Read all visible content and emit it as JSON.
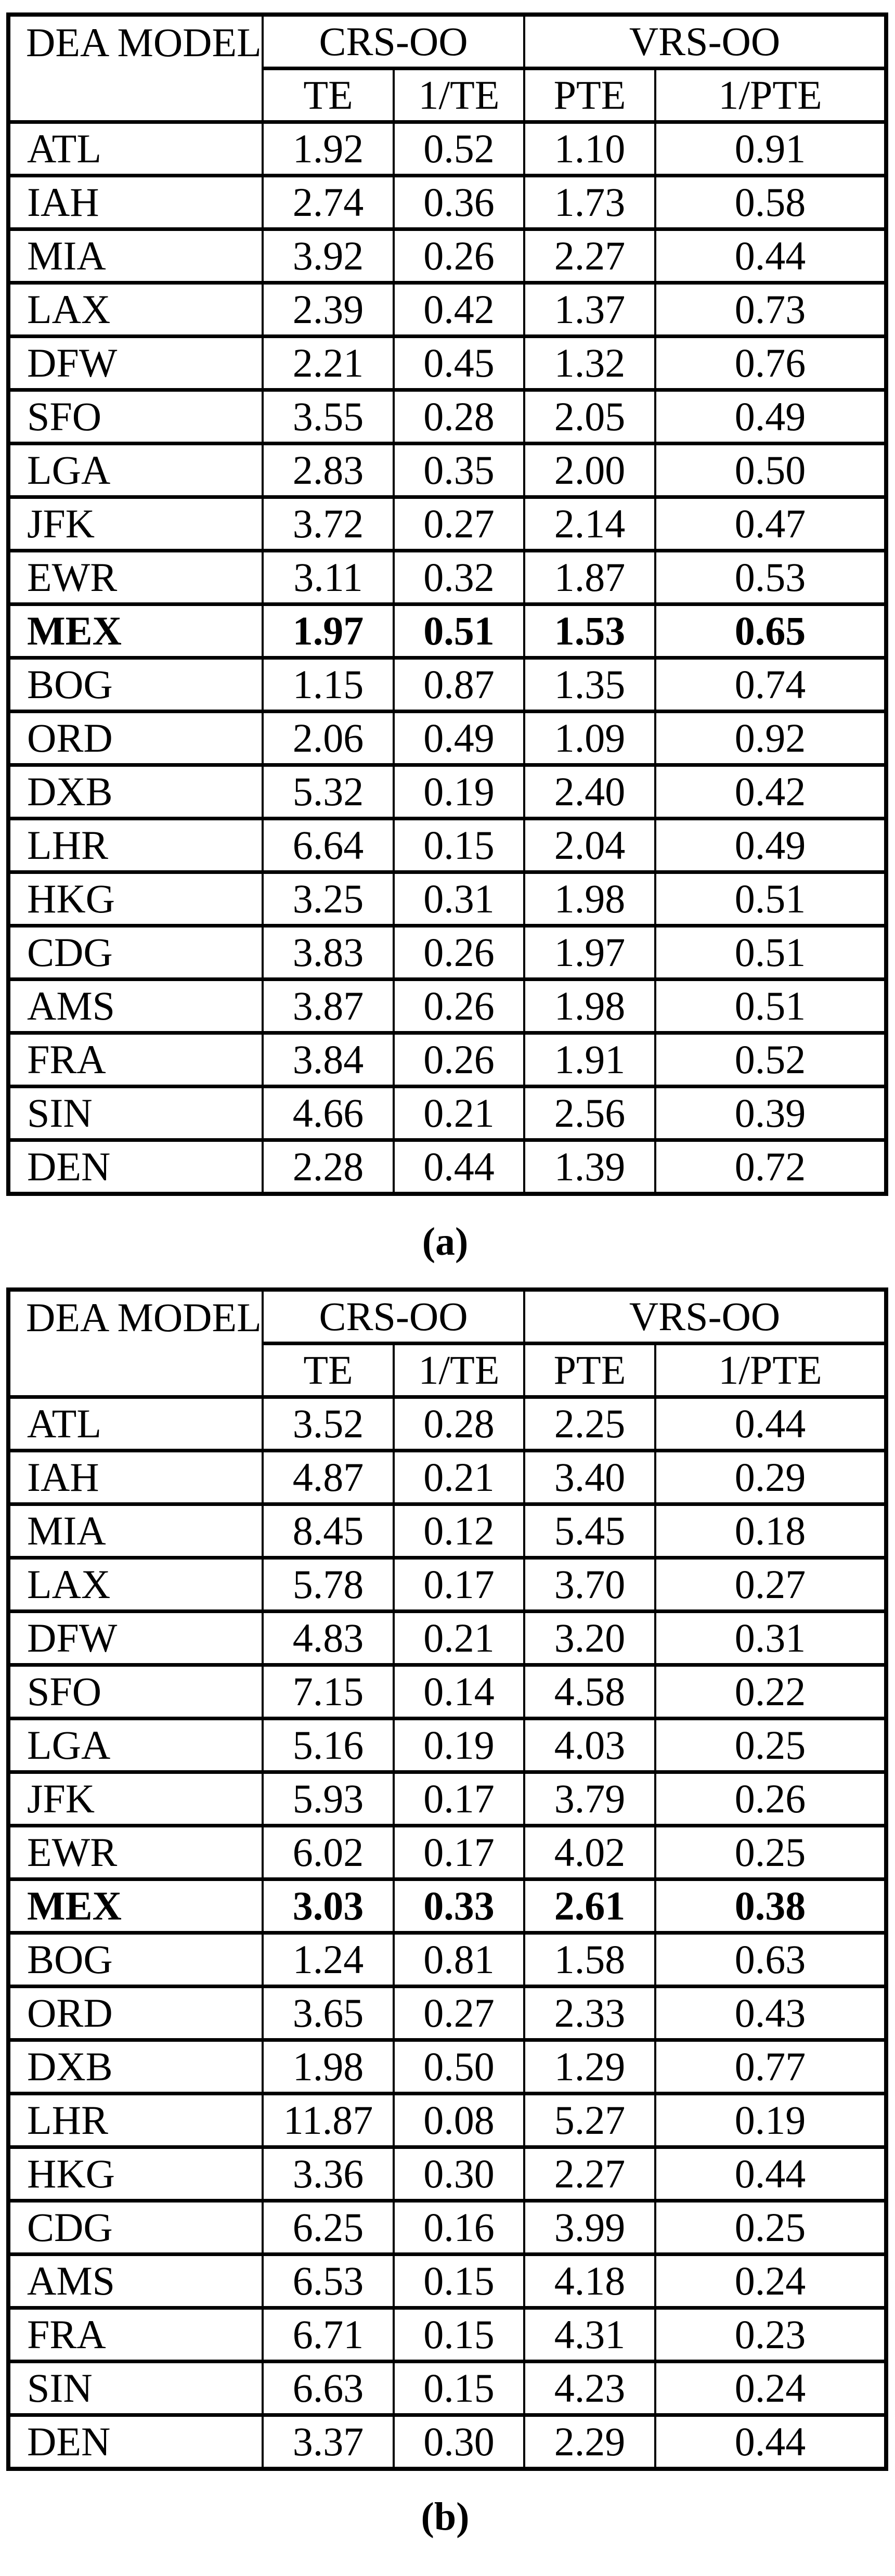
{
  "page": {
    "background_color": "#ffffff",
    "text_color": "#000000"
  },
  "tables": [
    {
      "caption": "(a)",
      "header": {
        "model": "DEA MODEL",
        "groups": [
          "CRS-OO",
          "VRS-OO"
        ],
        "subheaders": [
          "TE",
          "1/TE",
          "PTE",
          "1/PTE"
        ]
      },
      "rows": [
        {
          "code": "ATL",
          "te": "1.92",
          "inv_te": "0.52",
          "pte": "1.10",
          "inv_pte": "0.91",
          "bold": false
        },
        {
          "code": "IAH",
          "te": "2.74",
          "inv_te": "0.36",
          "pte": "1.73",
          "inv_pte": "0.58",
          "bold": false
        },
        {
          "code": "MIA",
          "te": "3.92",
          "inv_te": "0.26",
          "pte": "2.27",
          "inv_pte": "0.44",
          "bold": false
        },
        {
          "code": "LAX",
          "te": "2.39",
          "inv_te": "0.42",
          "pte": "1.37",
          "inv_pte": "0.73",
          "bold": false
        },
        {
          "code": "DFW",
          "te": "2.21",
          "inv_te": "0.45",
          "pte": "1.32",
          "inv_pte": "0.76",
          "bold": false
        },
        {
          "code": "SFO",
          "te": "3.55",
          "inv_te": "0.28",
          "pte": "2.05",
          "inv_pte": "0.49",
          "bold": false
        },
        {
          "code": "LGA",
          "te": "2.83",
          "inv_te": "0.35",
          "pte": "2.00",
          "inv_pte": "0.50",
          "bold": false
        },
        {
          "code": "JFK",
          "te": "3.72",
          "inv_te": "0.27",
          "pte": "2.14",
          "inv_pte": "0.47",
          "bold": false
        },
        {
          "code": "EWR",
          "te": "3.11",
          "inv_te": "0.32",
          "pte": "1.87",
          "inv_pte": "0.53",
          "bold": false
        },
        {
          "code": "MEX",
          "te": "1.97",
          "inv_te": "0.51",
          "pte": "1.53",
          "inv_pte": "0.65",
          "bold": true
        },
        {
          "code": "BOG",
          "te": "1.15",
          "inv_te": "0.87",
          "pte": "1.35",
          "inv_pte": "0.74",
          "bold": false
        },
        {
          "code": "ORD",
          "te": "2.06",
          "inv_te": "0.49",
          "pte": "1.09",
          "inv_pte": "0.92",
          "bold": false
        },
        {
          "code": "DXB",
          "te": "5.32",
          "inv_te": "0.19",
          "pte": "2.40",
          "inv_pte": "0.42",
          "bold": false
        },
        {
          "code": "LHR",
          "te": "6.64",
          "inv_te": "0.15",
          "pte": "2.04",
          "inv_pte": "0.49",
          "bold": false
        },
        {
          "code": "HKG",
          "te": "3.25",
          "inv_te": "0.31",
          "pte": "1.98",
          "inv_pte": "0.51",
          "bold": false
        },
        {
          "code": "CDG",
          "te": "3.83",
          "inv_te": "0.26",
          "pte": "1.97",
          "inv_pte": "0.51",
          "bold": false
        },
        {
          "code": "AMS",
          "te": "3.87",
          "inv_te": "0.26",
          "pte": "1.98",
          "inv_pte": "0.51",
          "bold": false
        },
        {
          "code": "FRA",
          "te": "3.84",
          "inv_te": "0.26",
          "pte": "1.91",
          "inv_pte": "0.52",
          "bold": false
        },
        {
          "code": "SIN",
          "te": "4.66",
          "inv_te": "0.21",
          "pte": "2.56",
          "inv_pte": "0.39",
          "bold": false
        },
        {
          "code": "DEN",
          "te": "2.28",
          "inv_te": "0.44",
          "pte": "1.39",
          "inv_pte": "0.72",
          "bold": false
        }
      ]
    },
    {
      "caption": "(b)",
      "header": {
        "model": "DEA MODEL",
        "groups": [
          "CRS-OO",
          "VRS-OO"
        ],
        "subheaders": [
          "TE",
          "1/TE",
          "PTE",
          "1/PTE"
        ]
      },
      "rows": [
        {
          "code": "ATL",
          "te": "3.52",
          "inv_te": "0.28",
          "pte": "2.25",
          "inv_pte": "0.44",
          "bold": false
        },
        {
          "code": "IAH",
          "te": "4.87",
          "inv_te": "0.21",
          "pte": "3.40",
          "inv_pte": "0.29",
          "bold": false
        },
        {
          "code": "MIA",
          "te": "8.45",
          "inv_te": "0.12",
          "pte": "5.45",
          "inv_pte": "0.18",
          "bold": false
        },
        {
          "code": "LAX",
          "te": "5.78",
          "inv_te": "0.17",
          "pte": "3.70",
          "inv_pte": "0.27",
          "bold": false
        },
        {
          "code": "DFW",
          "te": "4.83",
          "inv_te": "0.21",
          "pte": "3.20",
          "inv_pte": "0.31",
          "bold": false
        },
        {
          "code": "SFO",
          "te": "7.15",
          "inv_te": "0.14",
          "pte": "4.58",
          "inv_pte": "0.22",
          "bold": false
        },
        {
          "code": "LGA",
          "te": "5.16",
          "inv_te": "0.19",
          "pte": "4.03",
          "inv_pte": "0.25",
          "bold": false
        },
        {
          "code": "JFK",
          "te": "5.93",
          "inv_te": "0.17",
          "pte": "3.79",
          "inv_pte": "0.26",
          "bold": false
        },
        {
          "code": "EWR",
          "te": "6.02",
          "inv_te": "0.17",
          "pte": "4.02",
          "inv_pte": "0.25",
          "bold": false
        },
        {
          "code": "MEX",
          "te": "3.03",
          "inv_te": "0.33",
          "pte": "2.61",
          "inv_pte": "0.38",
          "bold": true
        },
        {
          "code": "BOG",
          "te": "1.24",
          "inv_te": "0.81",
          "pte": "1.58",
          "inv_pte": "0.63",
          "bold": false
        },
        {
          "code": "ORD",
          "te": "3.65",
          "inv_te": "0.27",
          "pte": "2.33",
          "inv_pte": "0.43",
          "bold": false
        },
        {
          "code": "DXB",
          "te": "1.98",
          "inv_te": "0.50",
          "pte": "1.29",
          "inv_pte": "0.77",
          "bold": false
        },
        {
          "code": "LHR",
          "te": "11.87",
          "inv_te": "0.08",
          "pte": "5.27",
          "inv_pte": "0.19",
          "bold": false
        },
        {
          "code": "HKG",
          "te": "3.36",
          "inv_te": "0.30",
          "pte": "2.27",
          "inv_pte": "0.44",
          "bold": false
        },
        {
          "code": "CDG",
          "te": "6.25",
          "inv_te": "0.16",
          "pte": "3.99",
          "inv_pte": "0.25",
          "bold": false
        },
        {
          "code": "AMS",
          "te": "6.53",
          "inv_te": "0.15",
          "pte": "4.18",
          "inv_pte": "0.24",
          "bold": false
        },
        {
          "code": "FRA",
          "te": "6.71",
          "inv_te": "0.15",
          "pte": "4.31",
          "inv_pte": "0.23",
          "bold": false
        },
        {
          "code": "SIN",
          "te": "6.63",
          "inv_te": "0.15",
          "pte": "4.23",
          "inv_pte": "0.24",
          "bold": false
        },
        {
          "code": "DEN",
          "te": "3.37",
          "inv_te": "0.30",
          "pte": "2.29",
          "inv_pte": "0.44",
          "bold": false
        }
      ]
    }
  ]
}
